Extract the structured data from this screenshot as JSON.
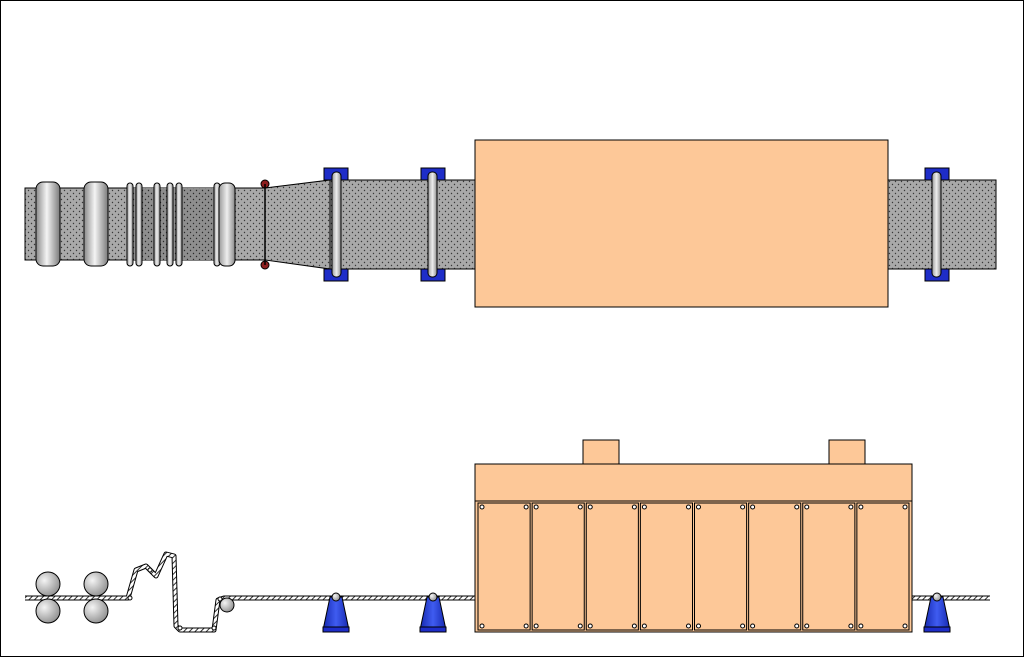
{
  "diagram": {
    "views": [
      {
        "name": "plan-view",
        "kind": "top"
      },
      {
        "name": "elevation-view",
        "kind": "side"
      }
    ],
    "oven_panel_count": 8,
    "supports": [
      "support-1",
      "support-2",
      "support-3"
    ],
    "colors": {
      "oven": "#fdc898",
      "strip": "#a8a8a8",
      "strip_dark": "#8c8c8c",
      "clamp": "#1e2dc8",
      "cone": "#1e3cd2",
      "roller": "#b4b4b4",
      "outline": "#000000",
      "red_marker": "#8c1e1e"
    }
  }
}
